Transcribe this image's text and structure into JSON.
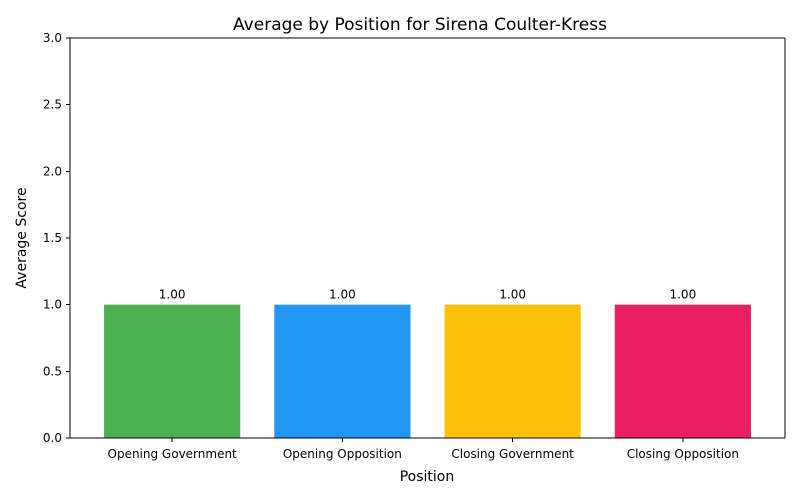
{
  "chart_data": {
    "type": "bar",
    "title": "Average by Position for Sirena Coulter-Kress",
    "xlabel": "Position",
    "ylabel": "Average Score",
    "categories": [
      "Opening Government",
      "Opening Opposition",
      "Closing Government",
      "Closing Opposition"
    ],
    "values": [
      1.0,
      1.0,
      1.0,
      1.0
    ],
    "data_labels": [
      "1.00",
      "1.00",
      "1.00",
      "1.00"
    ],
    "bar_colors": [
      "#4caf50",
      "#2196f3",
      "#ffc107",
      "#e91e63"
    ],
    "ylim": [
      0,
      3
    ],
    "yticks": [
      0,
      0.5,
      1,
      1.5,
      2,
      2.5,
      3
    ],
    "ytick_labels": [
      "0.0",
      "0.5",
      "1.0",
      "1.5",
      "2.0",
      "2.5",
      "3.0"
    ],
    "grid": false,
    "legend": "none"
  }
}
